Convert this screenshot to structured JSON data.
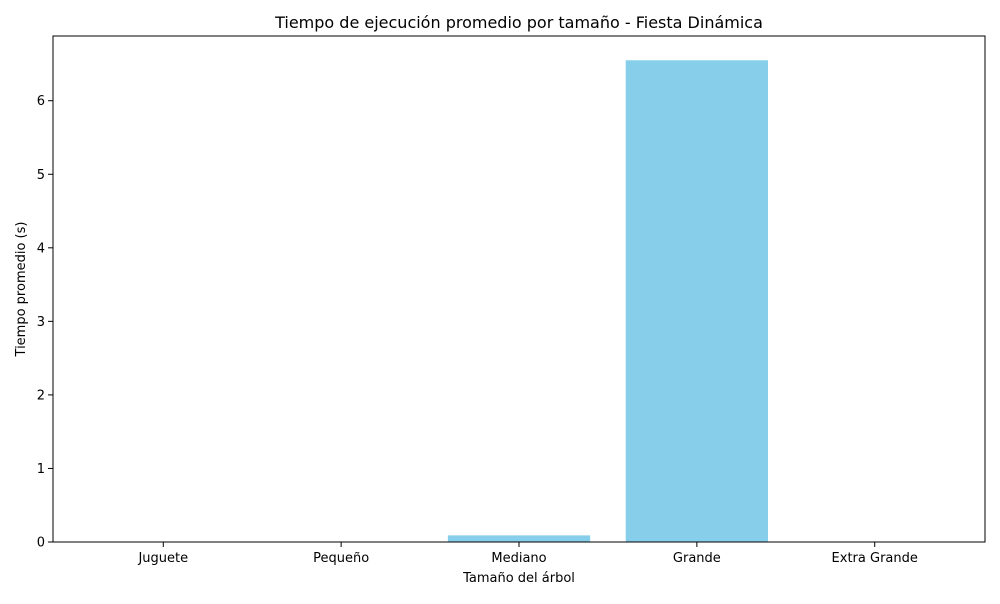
{
  "chart_data": {
    "type": "bar",
    "title": "Tiempo de ejecución promedio por tamaño - Fiesta Dinámica",
    "xlabel": "Tamaño del árbol",
    "ylabel": "Tiempo promedio (s)",
    "categories": [
      "Juguete",
      "Pequeño",
      "Mediano",
      "Grande",
      "Extra Grande"
    ],
    "values": [
      0.0,
      0.001,
      0.09,
      6.55,
      0.0
    ],
    "ylim": [
      0,
      6.88
    ],
    "yticks": [
      0,
      1,
      2,
      3,
      4,
      5,
      6
    ],
    "bar_color": "#87CEEB",
    "grid": false,
    "legend": "none"
  }
}
